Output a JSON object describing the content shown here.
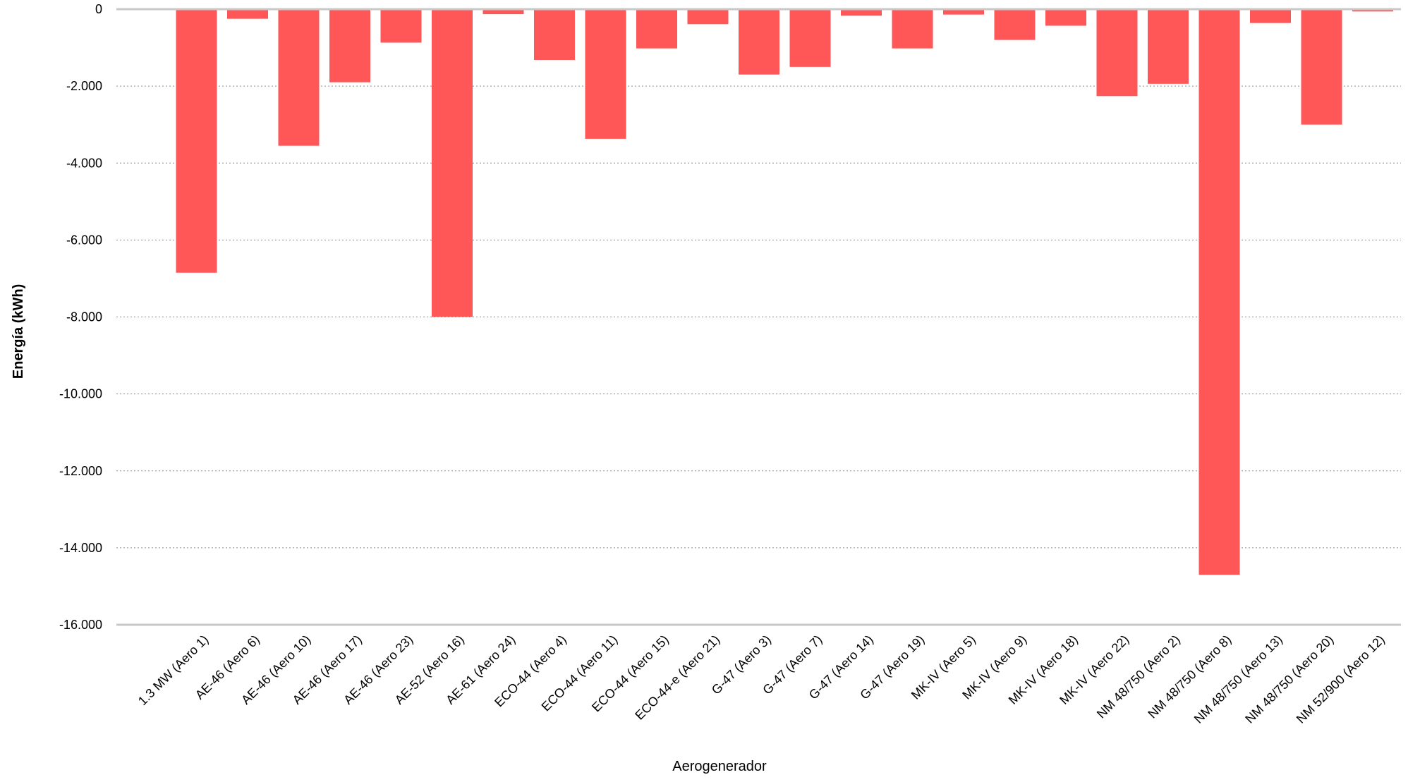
{
  "chart_data": {
    "type": "bar",
    "title": "",
    "xlabel": "Aerogenerador",
    "ylabel": "Energía  (kWh)",
    "ylim": [
      -16000,
      0
    ],
    "yticks": [
      0,
      -2000,
      -4000,
      -6000,
      -8000,
      -10000,
      -12000,
      -14000,
      -16000
    ],
    "ytick_labels": [
      "0",
      "-2.000",
      "-4.000",
      "-6.000",
      "-8.000",
      "-10.000",
      "-12.000",
      "-14.000",
      "-16.000"
    ],
    "grid": true,
    "legend": "none",
    "bar_color": "#FF5757",
    "categories": [
      "1.3 MW (Aero 1)",
      "AE-46 (Aero 6)",
      "AE-46 (Aero 10)",
      "AE-46 (Aero 17)",
      "AE-46 (Aero 23)",
      "AE-52 (Aero 16)",
      "AE-61 (Aero 24)",
      "ECO-44 (Aero 4)",
      "ECO-44 (Aero 11)",
      "ECO-44 (Aero 15)",
      "ECO-44-e (Aero 21)",
      "G-47 (Aero 3)",
      "G-47 (Aero 7)",
      "G-47 (Aero 14)",
      "G-47 (Aero 19)",
      "MK-IV (Aero 5)",
      "MK-IV (Aero 9)",
      "MK-IV (Aero 18)",
      "MK-IV (Aero 22)",
      "NM 48/750 (Aero 2)",
      "NM 48/750 (Aero 8)",
      "NM 48/750 (Aero 13)",
      "NM 48/750 (Aero 20)",
      "NM 52/900 (Aero 12)"
    ],
    "values": [
      -6850,
      -250,
      -3550,
      -1900,
      -870,
      -8000,
      -130,
      -1320,
      -3370,
      -1020,
      -390,
      -1700,
      -1500,
      -170,
      -1020,
      -140,
      -800,
      -430,
      -2260,
      -1940,
      -14700,
      -360,
      -3000,
      -60
    ]
  }
}
